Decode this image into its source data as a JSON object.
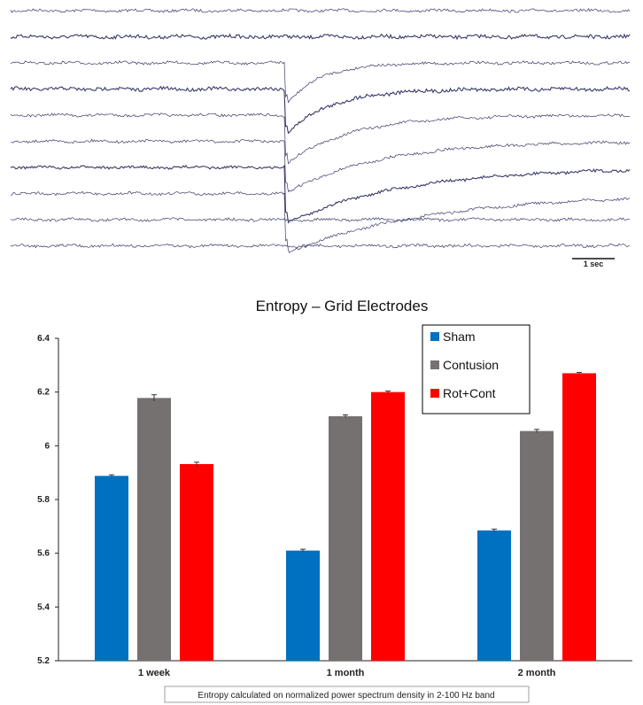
{
  "eeg_panel": {
    "channel_count": 10,
    "scale_bar_label": "1 sec",
    "trace_color": "#3a3a6a"
  },
  "chart_data": {
    "type": "bar",
    "title": "Entropy – Grid Electrodes",
    "categories": [
      "1 week",
      "1 month",
      "2 month"
    ],
    "series": [
      {
        "name": "Sham",
        "color": "#0070c0",
        "values": [
          5.888,
          5.61,
          5.685
        ],
        "errors": [
          0.004,
          0.005,
          0.005
        ]
      },
      {
        "name": "Contusion",
        "color": "#767171",
        "values": [
          6.178,
          6.11,
          6.055
        ],
        "errors": [
          0.012,
          0.005,
          0.006
        ]
      },
      {
        "name": "Rot+Cont",
        "color": "#ff0000",
        "values": [
          5.932,
          6.2,
          6.27
        ],
        "errors": [
          0.007,
          0.004,
          0.003
        ]
      }
    ],
    "ylim": [
      5.2,
      6.4
    ],
    "yticks": [
      "5.2",
      "5.4",
      "5.6",
      "5.8",
      "6",
      "6.2",
      "6.4"
    ],
    "grid": false,
    "legend_position": "top-right",
    "footnote": "Entropy calculated on normalized power spectrum density in 2-100 Hz band"
  }
}
